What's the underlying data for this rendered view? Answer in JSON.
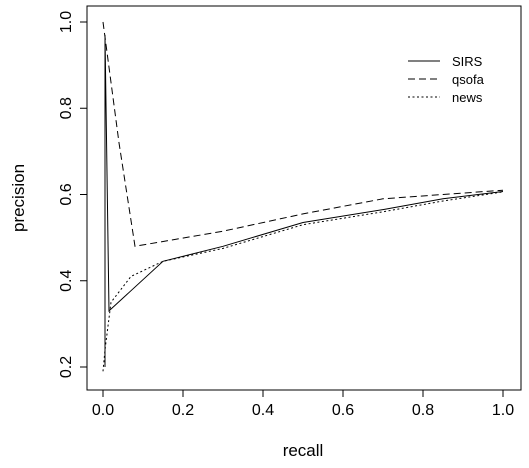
{
  "chart_data": {
    "type": "line",
    "xlabel": "recall",
    "ylabel": "precision",
    "xlim": [
      0,
      1
    ],
    "ylim": [
      0.2,
      1.0
    ],
    "xticks": [
      "0.0",
      "0.2",
      "0.4",
      "0.6",
      "0.8",
      "1.0"
    ],
    "yticks": [
      "0.2",
      "0.4",
      "0.6",
      "0.8",
      "1.0"
    ],
    "grid": false,
    "legend_position": "top-right",
    "series": [
      {
        "name": "SIRS",
        "line_style": "solid",
        "points": [
          [
            0.005,
            0.2
          ],
          [
            0.005,
            0.97
          ],
          [
            0.015,
            0.33
          ],
          [
            0.15,
            0.445
          ],
          [
            0.3,
            0.48
          ],
          [
            0.5,
            0.535
          ],
          [
            0.7,
            0.565
          ],
          [
            0.85,
            0.59
          ],
          [
            1.0,
            0.607
          ]
        ]
      },
      {
        "name": "qsofa",
        "line_style": "dashed",
        "points": [
          [
            0.0,
            1.0
          ],
          [
            0.04,
            0.72
          ],
          [
            0.08,
            0.48
          ],
          [
            0.3,
            0.515
          ],
          [
            0.5,
            0.555
          ],
          [
            0.7,
            0.59
          ],
          [
            0.85,
            0.6
          ],
          [
            1.0,
            0.61
          ]
        ]
      },
      {
        "name": "news",
        "line_style": "dotted",
        "points": [
          [
            0.0,
            0.19
          ],
          [
            0.005,
            0.24
          ],
          [
            0.02,
            0.35
          ],
          [
            0.07,
            0.41
          ],
          [
            0.15,
            0.445
          ],
          [
            0.3,
            0.475
          ],
          [
            0.5,
            0.53
          ],
          [
            0.7,
            0.56
          ],
          [
            0.85,
            0.585
          ],
          [
            1.0,
            0.606
          ]
        ]
      }
    ]
  }
}
